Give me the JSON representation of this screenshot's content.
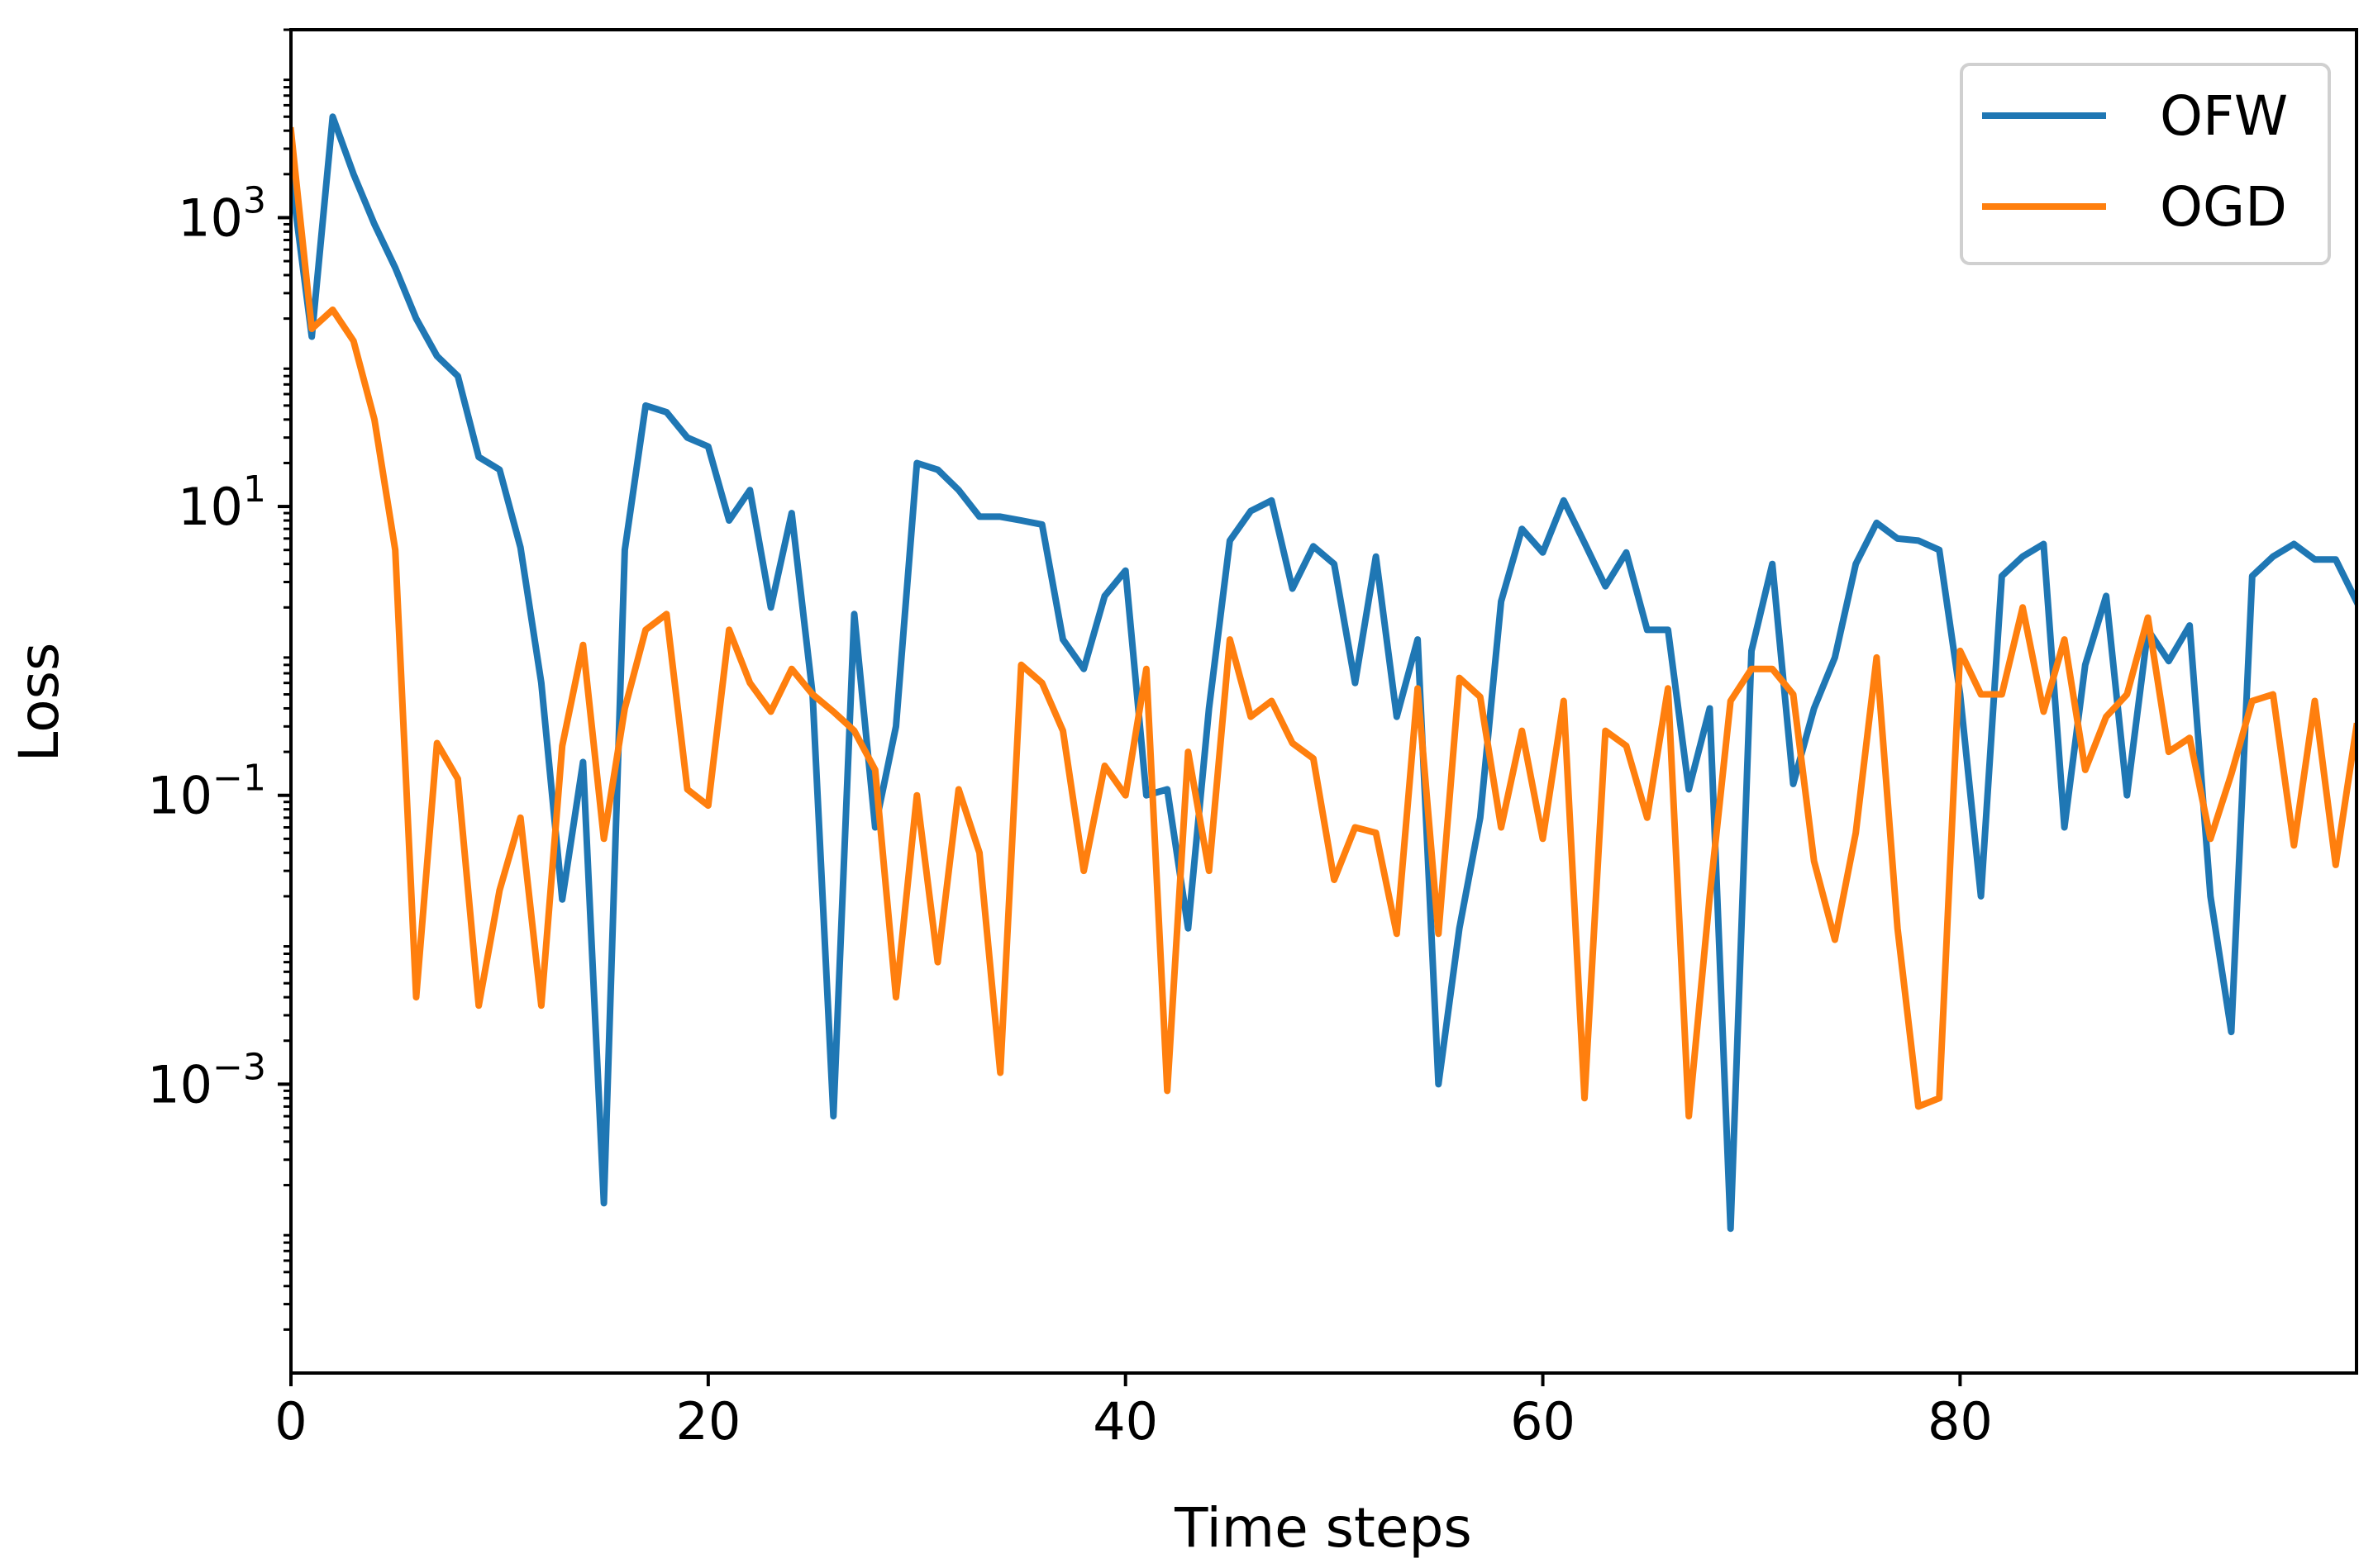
{
  "chart_data": {
    "type": "line",
    "xlabel": "Time steps",
    "ylabel": "Loss",
    "yscale": "log",
    "xlim": [
      0,
      99
    ],
    "ylim": [
      1e-05,
      20000
    ],
    "grid": false,
    "legend_position": "top-right",
    "x_ticks": [
      {
        "value": 0,
        "label": "0"
      },
      {
        "value": 20,
        "label": "20"
      },
      {
        "value": 40,
        "label": "40"
      },
      {
        "value": 60,
        "label": "60"
      },
      {
        "value": 80,
        "label": "80"
      }
    ],
    "y_ticks": [
      {
        "value": 0.001,
        "base": "10",
        "exp": "−3"
      },
      {
        "value": 0.1,
        "base": "10",
        "exp": "−1"
      },
      {
        "value": 10,
        "base": "10",
        "exp": "1"
      },
      {
        "value": 1000,
        "base": "10",
        "exp": "3"
      }
    ],
    "colors": {
      "OFW": "#1f77b4",
      "OGD": "#ff7f0e"
    },
    "series": [
      {
        "name": "OFW",
        "values": [
          2000,
          150,
          5000,
          2000,
          900,
          450,
          200,
          110,
          80,
          22,
          18,
          5.2,
          0.6,
          0.019,
          0.17,
          0.00015,
          5,
          50,
          45,
          30,
          26,
          8,
          13,
          2,
          9,
          0.5,
          0.0006,
          1.8,
          0.06,
          0.3,
          20,
          18,
          13,
          8.5,
          8.5,
          8,
          7.5,
          1.2,
          0.75,
          2.4,
          3.6,
          0.1,
          0.11,
          0.012,
          0.4,
          5.8,
          9.3,
          11,
          2.7,
          5.3,
          4,
          0.6,
          4.5,
          0.35,
          1.2,
          0.001,
          0.012,
          0.07,
          2.2,
          7,
          4.8,
          11,
          5.6,
          2.8,
          4.8,
          1.4,
          1.4,
          0.11,
          0.4,
          0.0001,
          1,
          4,
          0.12,
          0.4,
          0.9,
          4,
          7.7,
          6,
          5.8,
          5,
          0.5,
          0.02,
          3.3,
          4.5,
          5.5,
          0.06,
          0.8,
          2.4,
          0.1,
          1.4,
          0.85,
          1.5,
          0.02,
          0.0023,
          3.3,
          4.5,
          5.5,
          4.3,
          4.3,
          2.2
        ]
      },
      {
        "name": "OGD",
        "values": [
          4000,
          170,
          230,
          140,
          40,
          5,
          0.004,
          0.23,
          0.13,
          0.0035,
          0.022,
          0.07,
          0.0035,
          0.22,
          1.1,
          0.05,
          0.4,
          1.4,
          1.8,
          0.11,
          0.085,
          1.4,
          0.6,
          0.38,
          0.75,
          0.5,
          0.38,
          0.28,
          0.15,
          0.004,
          0.1,
          0.007,
          0.11,
          0.04,
          0.0012,
          0.8,
          0.6,
          0.28,
          0.03,
          0.16,
          0.1,
          0.75,
          0.0009,
          0.2,
          0.03,
          1.2,
          0.35,
          0.45,
          0.23,
          0.18,
          0.026,
          0.06,
          0.055,
          0.011,
          0.55,
          0.011,
          0.65,
          0.48,
          0.06,
          0.28,
          0.05,
          0.45,
          0.0008,
          0.28,
          0.22,
          0.07,
          0.55,
          0.0006,
          0.02,
          0.45,
          0.75,
          0.75,
          0.5,
          0.035,
          0.01,
          0.055,
          0.9,
          0.012,
          0.0007,
          0.0008,
          1,
          0.5,
          0.5,
          2,
          0.38,
          1.2,
          0.15,
          0.35,
          0.5,
          1.7,
          0.2,
          0.25,
          0.05,
          0.14,
          0.45,
          0.5,
          0.045,
          0.45,
          0.033,
          0.3
        ]
      }
    ]
  }
}
